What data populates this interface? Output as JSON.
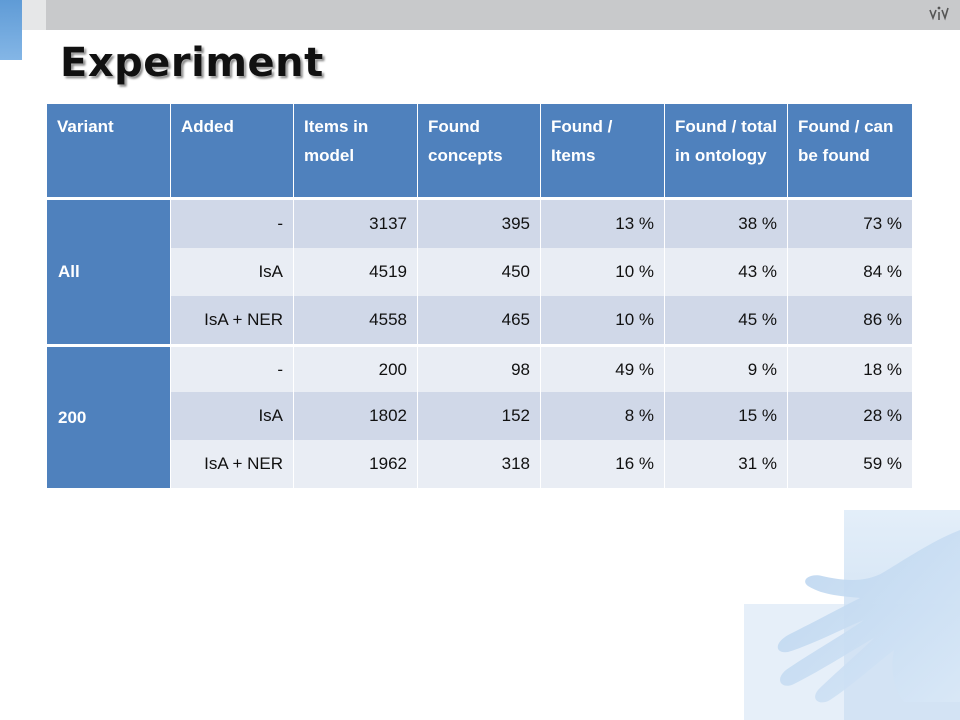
{
  "slide": {
    "title": "Experiment"
  },
  "table": {
    "headers": [
      "Variant",
      "Added",
      "Items in model",
      "Found concepts",
      "Found / Items",
      "Found / total in ontology",
      "Found / can be found"
    ],
    "groups": [
      {
        "variant": "All",
        "rows": [
          {
            "added": "-",
            "items": "3137",
            "found": "395",
            "found_items": "13 %",
            "found_total": "38 %",
            "found_can": "73 %"
          },
          {
            "added": "IsA",
            "items": "4519",
            "found": "450",
            "found_items": "10 %",
            "found_total": "43 %",
            "found_can": "84 %"
          },
          {
            "added": "IsA + NER",
            "items": "4558",
            "found": "465",
            "found_items": "10 %",
            "found_total": "45 %",
            "found_can": "86 %"
          }
        ]
      },
      {
        "variant": "200",
        "rows": [
          {
            "added": "-",
            "items": "200",
            "found": "98",
            "found_items": "49 %",
            "found_total": "9 %",
            "found_can": "18 %"
          },
          {
            "added": "IsA",
            "items": "1802",
            "found": "152",
            "found_items": "8 %",
            "found_total": "15 %",
            "found_can": "28 %"
          },
          {
            "added": "IsA + NER",
            "items": "1962",
            "found": "318",
            "found_items": "16 %",
            "found_total": "31 %",
            "found_can": "59 %"
          }
        ]
      }
    ]
  },
  "colors": {
    "header_bg": "#4f81bd",
    "row_dark": "#d0d8e8",
    "row_light": "#e9edf4"
  },
  "icons": {
    "top_right": "logo-mark-icon"
  }
}
